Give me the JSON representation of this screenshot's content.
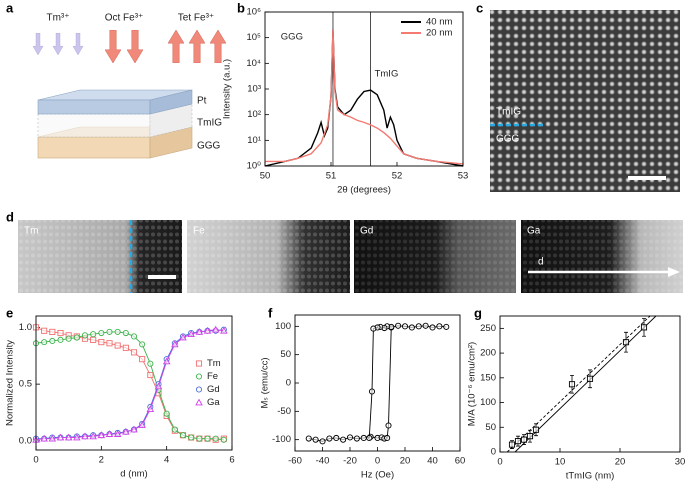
{
  "panel_labels": [
    "a",
    "b",
    "c",
    "d",
    "e",
    "f",
    "g"
  ],
  "diagram": {
    "ions": [
      "Tm³⁺",
      "Oct Fe³⁺",
      "Tet Fe³⁺"
    ],
    "layers": [
      "Pt",
      "TmIG",
      "GGG"
    ]
  },
  "image_c": {
    "labels": [
      "TmIG",
      "GGG"
    ]
  },
  "image_d": {
    "labels": [
      "Tm",
      "Fe",
      "Gd",
      "Ga"
    ],
    "axis_label": "d"
  },
  "chart_data": [
    {
      "type": "line",
      "xlabel": "2θ (degrees)",
      "ylabel": "Intensity (a.u.)",
      "xlim": [
        50,
        53
      ],
      "ylim": [
        1,
        1000000
      ],
      "log_y": true,
      "xticks": [
        50,
        51,
        52,
        53
      ],
      "yticks": [
        {
          "value": 1,
          "label": "10⁰"
        },
        {
          "value": 10,
          "label": "10¹"
        },
        {
          "value": 100,
          "label": "10²"
        },
        {
          "value": 1000,
          "label": "10³"
        },
        {
          "value": 10000,
          "label": "10⁴"
        },
        {
          "value": 100000,
          "label": "10⁵"
        },
        {
          "value": 1000000,
          "label": "10⁶"
        }
      ],
      "legend": "upper right",
      "series": [
        {
          "name": "40 nm",
          "color": "#000000",
          "x": [
            50,
            50.3,
            50.5,
            50.7,
            50.8,
            50.85,
            50.9,
            50.95,
            51.0,
            51.03,
            51.06,
            51.1,
            51.2,
            51.3,
            51.4,
            51.5,
            51.6,
            51.7,
            51.8,
            51.85,
            51.9,
            51.95,
            52.0,
            52.1,
            52.3,
            52.6,
            53
          ],
          "values": [
            1,
            1.5,
            2,
            5,
            20,
            50,
            15,
            30,
            500,
            200000,
            1000,
            200,
            100,
            150,
            400,
            800,
            900,
            600,
            150,
            30,
            80,
            40,
            10,
            3,
            2,
            1.5,
            1
          ]
        },
        {
          "name": "20 nm",
          "color": "#f47a72",
          "x": [
            50,
            50.3,
            50.5,
            50.7,
            50.85,
            50.95,
            51.0,
            51.03,
            51.06,
            51.1,
            51.2,
            51.3,
            51.4,
            51.5,
            51.6,
            51.7,
            51.8,
            51.9,
            52.0,
            52.1,
            52.3,
            52.6,
            53
          ],
          "values": [
            1.5,
            1.5,
            2,
            3,
            8,
            40,
            500,
            200000,
            800,
            150,
            100,
            80,
            60,
            50,
            40,
            30,
            20,
            12,
            6,
            3,
            2,
            1.5,
            1.2
          ]
        }
      ],
      "vlines": [
        {
          "x": 51.03,
          "label": "GGG"
        },
        {
          "x": 51.6,
          "label": "TmIG"
        }
      ]
    },
    {
      "type": "scatter",
      "xlabel": "d (nm)",
      "ylabel": "Normalized Intensity",
      "xlim": [
        0,
        6
      ],
      "ylim": [
        -0.08,
        1.1
      ],
      "xticks": [
        0,
        2,
        4,
        6
      ],
      "yticks": [
        {
          "value": 0,
          "label": "0.0"
        },
        {
          "value": 0.5,
          "label": "0.5"
        },
        {
          "value": 1,
          "label": "1.0"
        }
      ],
      "legend": "right",
      "x": [
        0,
        0.25,
        0.5,
        0.75,
        1,
        1.25,
        1.5,
        1.75,
        2,
        2.25,
        2.5,
        2.75,
        3,
        3.25,
        3.5,
        3.75,
        4,
        4.25,
        4.5,
        4.75,
        5,
        5.25,
        5.5,
        5.75
      ],
      "series": [
        {
          "name": "Tm",
          "color": "#f07070",
          "marker": "square",
          "connect": true,
          "values": [
            1.0,
            0.97,
            0.96,
            0.95,
            0.93,
            0.92,
            0.9,
            0.89,
            0.87,
            0.86,
            0.84,
            0.82,
            0.78,
            0.72,
            0.58,
            0.42,
            0.22,
            0.09,
            0.05,
            0.03,
            0.02,
            0.02,
            0.01,
            0.02
          ]
        },
        {
          "name": "Fe",
          "color": "#3cb44b",
          "marker": "circle",
          "connect": true,
          "values": [
            0.86,
            0.87,
            0.88,
            0.89,
            0.9,
            0.91,
            0.93,
            0.94,
            0.95,
            0.96,
            0.96,
            0.95,
            0.92,
            0.85,
            0.68,
            0.45,
            0.24,
            0.1,
            0.05,
            0.03,
            0.02,
            0.02,
            0.02,
            0.01
          ]
        },
        {
          "name": "Gd",
          "color": "#4a6fd8",
          "marker": "circle",
          "connect": true,
          "values": [
            0.02,
            0.02,
            0.03,
            0.03,
            0.03,
            0.04,
            0.04,
            0.05,
            0.05,
            0.06,
            0.07,
            0.08,
            0.1,
            0.15,
            0.3,
            0.5,
            0.72,
            0.86,
            0.92,
            0.95,
            0.96,
            0.97,
            0.97,
            0.98
          ]
        },
        {
          "name": "Ga",
          "color": "#d23ee8",
          "marker": "triangle",
          "connect": true,
          "values": [
            0.01,
            0.02,
            0.02,
            0.03,
            0.03,
            0.03,
            0.04,
            0.04,
            0.05,
            0.06,
            0.06,
            0.08,
            0.1,
            0.14,
            0.28,
            0.48,
            0.7,
            0.85,
            0.91,
            0.94,
            0.96,
            0.97,
            0.98,
            0.97
          ]
        }
      ]
    },
    {
      "type": "scatter",
      "xlabel": "Hz (Oe)",
      "ylabel": "Mₛ (emu/cc)",
      "xlim": [
        -60,
        60
      ],
      "ylim": [
        -120,
        120
      ],
      "xticks": [
        -60,
        -40,
        -20,
        0,
        20,
        40,
        60
      ],
      "yticks": [
        -100,
        -50,
        0,
        50,
        100
      ],
      "series": [
        {
          "color": "#000000",
          "marker": "circle",
          "connect": true,
          "x": [
            -50,
            -45,
            -40,
            -35,
            -30,
            -25,
            -20,
            -15,
            -10,
            -5,
            0,
            3,
            5,
            7,
            8,
            10
          ],
          "values": [
            -98,
            -100,
            -103,
            -98,
            -97,
            -100,
            -96,
            -98,
            -97,
            -95,
            -97,
            -96,
            -98,
            -97,
            -75,
            98
          ]
        },
        {
          "color": "#000000",
          "marker": "circle",
          "connect": true,
          "x": [
            50,
            45,
            40,
            35,
            30,
            25,
            20,
            15,
            10,
            7,
            5,
            2,
            0,
            -3,
            -4,
            -6
          ],
          "values": [
            99,
            100,
            98,
            101,
            100,
            98,
            100,
            101,
            99,
            100,
            97,
            99,
            98,
            96,
            -15,
            -97
          ]
        }
      ]
    },
    {
      "type": "scatter",
      "xlabel": "tTmIG (nm)",
      "ylabel": "M/A (10⁻⁶ emu/cm²)",
      "xlim": [
        0,
        30
      ],
      "ylim": [
        0,
        275
      ],
      "xticks": [
        0,
        10,
        20,
        30
      ],
      "yticks": [
        0,
        50,
        100,
        150,
        200,
        250
      ],
      "series": [
        {
          "color": "#000000",
          "marker": "square",
          "x": [
            2,
            3,
            4,
            5,
            6,
            12,
            15,
            21,
            24
          ],
          "values": [
            15,
            22,
            25,
            32,
            45,
            137,
            148,
            222,
            252
          ],
          "errors": [
            8,
            10,
            10,
            12,
            12,
            18,
            18,
            20,
            18
          ]
        }
      ],
      "fit_lines": [
        {
          "style": "solid",
          "x": [
            2.5,
            26
          ],
          "values": [
            0,
            275
          ]
        },
        {
          "style": "dashed",
          "x": [
            1.2,
            25
          ],
          "values": [
            0,
            275
          ]
        }
      ]
    }
  ]
}
